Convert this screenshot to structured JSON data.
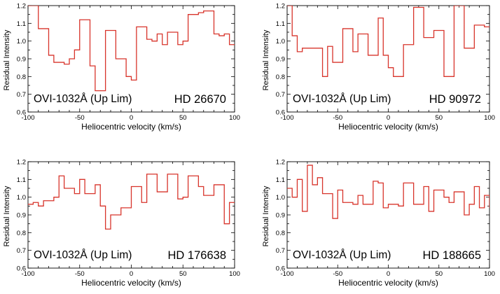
{
  "chart_data": [
    {
      "type": "line",
      "step": true,
      "line_color": "#d8342b",
      "xlabel": "Heliocentric velocity (km/s)",
      "ylabel": "Residual Intensity",
      "xlim": [
        -100,
        100
      ],
      "ylim": [
        0.6,
        1.2
      ],
      "xticks": [
        "-100",
        "-50",
        "0",
        "50",
        "100"
      ],
      "yticks": [
        "0.6",
        "0.7",
        "0.8",
        "0.9",
        "1.0",
        "1.1",
        "1.2"
      ],
      "annotation": "OVI-1032Å (Up Lim)",
      "title": "HD 26670",
      "x": [
        -100,
        -95,
        -90,
        -85,
        -80,
        -75,
        -70,
        -65,
        -60,
        -55,
        -50,
        -45,
        -40,
        -35,
        -30,
        -25,
        -20,
        -15,
        -10,
        -5,
        0,
        5,
        10,
        15,
        20,
        25,
        30,
        35,
        40,
        45,
        50,
        55,
        60,
        65,
        70,
        75,
        80,
        85,
        90,
        95,
        100
      ],
      "y": [
        1.2,
        1.2,
        1.07,
        1.07,
        0.92,
        0.88,
        0.88,
        0.87,
        0.9,
        0.95,
        1.12,
        1.12,
        0.86,
        0.72,
        0.72,
        1.06,
        1.06,
        0.9,
        0.9,
        0.8,
        0.78,
        1.08,
        1.08,
        1.01,
        1.0,
        1.04,
        0.98,
        1.05,
        1.05,
        0.98,
        1.0,
        1.15,
        1.15,
        1.16,
        1.17,
        1.17,
        1.04,
        1.03,
        1.04,
        0.98,
        0.98
      ]
    },
    {
      "type": "line",
      "step": true,
      "line_color": "#d8342b",
      "xlabel": "Heliocentric velocity (km/s)",
      "ylabel": "Residual Intensity",
      "xlim": [
        -100,
        100
      ],
      "ylim": [
        0.6,
        1.2
      ],
      "xticks": [
        "-100",
        "-50",
        "0",
        "50",
        "100"
      ],
      "yticks": [
        "0.6",
        "0.7",
        "0.8",
        "0.9",
        "1.0",
        "1.1",
        "1.2"
      ],
      "annotation": "OVI-1032Å (Up Lim)",
      "title": "HD 90972",
      "x": [
        -100,
        -95,
        -90,
        -85,
        -80,
        -75,
        -70,
        -65,
        -60,
        -55,
        -50,
        -45,
        -40,
        -35,
        -30,
        -25,
        -20,
        -15,
        -10,
        -5,
        0,
        5,
        10,
        15,
        20,
        25,
        30,
        35,
        40,
        45,
        50,
        55,
        60,
        65,
        70,
        75,
        80,
        85,
        90,
        95,
        100
      ],
      "y": [
        1.2,
        1.03,
        0.94,
        0.96,
        0.96,
        0.96,
        0.96,
        0.8,
        0.97,
        0.88,
        0.88,
        1.07,
        1.07,
        0.94,
        1.04,
        1.04,
        0.92,
        0.92,
        1.13,
        0.92,
        0.85,
        0.8,
        0.8,
        0.98,
        0.98,
        1.19,
        1.19,
        1.02,
        1.02,
        1.06,
        1.06,
        0.8,
        0.8,
        1.2,
        1.2,
        0.96,
        0.96,
        1.09,
        1.09,
        1.08,
        1.08
      ]
    },
    {
      "type": "line",
      "step": true,
      "line_color": "#d8342b",
      "xlabel": "Heliocentric velocity (km/s)",
      "ylabel": "Residual Intensity",
      "xlim": [
        -100,
        100
      ],
      "ylim": [
        0.6,
        1.2
      ],
      "xticks": [
        "-100",
        "-50",
        "0",
        "50",
        "100"
      ],
      "yticks": [
        "0.6",
        "0.7",
        "0.8",
        "0.9",
        "1.0",
        "1.1",
        "1.2"
      ],
      "annotation": "OVI-1032Å (Up Lim)",
      "title": "HD 176638",
      "x": [
        -100,
        -95,
        -90,
        -85,
        -80,
        -75,
        -70,
        -65,
        -60,
        -55,
        -50,
        -45,
        -40,
        -35,
        -30,
        -25,
        -20,
        -15,
        -10,
        -5,
        0,
        5,
        10,
        15,
        20,
        25,
        30,
        35,
        40,
        45,
        50,
        55,
        60,
        65,
        70,
        75,
        80,
        85,
        90,
        95,
        100
      ],
      "y": [
        0.96,
        0.97,
        0.95,
        0.98,
        0.98,
        1.0,
        1.12,
        1.05,
        1.05,
        1.02,
        1.1,
        1.02,
        1.02,
        1.07,
        0.95,
        0.82,
        0.9,
        0.9,
        0.94,
        0.94,
        1.06,
        1.06,
        0.97,
        1.13,
        1.13,
        1.03,
        1.03,
        1.13,
        1.13,
        0.99,
        1.0,
        1.12,
        1.12,
        1.06,
        1.01,
        1.01,
        1.07,
        1.07,
        0.85,
        0.97,
        0.97
      ]
    },
    {
      "type": "line",
      "step": true,
      "line_color": "#d8342b",
      "xlabel": "Heliocentric velocity (km/s)",
      "ylabel": "Residual Intensity",
      "xlim": [
        -100,
        100
      ],
      "ylim": [
        0.6,
        1.2
      ],
      "xticks": [
        "-100",
        "-50",
        "0",
        "50",
        "100"
      ],
      "yticks": [
        "0.6",
        "0.7",
        "0.8",
        "0.9",
        "1.0",
        "1.1",
        "1.2"
      ],
      "annotation": "OVI-1032Å (Up Lim)",
      "title": "HD 188665",
      "x": [
        -100,
        -95,
        -90,
        -85,
        -80,
        -75,
        -70,
        -65,
        -60,
        -55,
        -50,
        -45,
        -40,
        -35,
        -30,
        -25,
        -20,
        -15,
        -10,
        -5,
        0,
        5,
        10,
        15,
        20,
        25,
        30,
        35,
        40,
        45,
        50,
        55,
        60,
        65,
        70,
        75,
        80,
        85,
        90,
        95,
        100
      ],
      "y": [
        1.05,
        1.0,
        1.1,
        0.92,
        1.18,
        1.07,
        1.11,
        1.02,
        1.02,
        0.88,
        1.04,
        0.97,
        0.97,
        0.96,
        1.01,
        0.96,
        0.96,
        1.09,
        1.08,
        0.94,
        0.96,
        0.96,
        0.95,
        1.08,
        1.08,
        0.96,
        0.96,
        1.06,
        0.92,
        1.04,
        1.04,
        1.0,
        0.97,
        1.03,
        1.03,
        0.9,
        0.96,
        1.06,
        0.94,
        1.01,
        0.94
      ]
    }
  ]
}
